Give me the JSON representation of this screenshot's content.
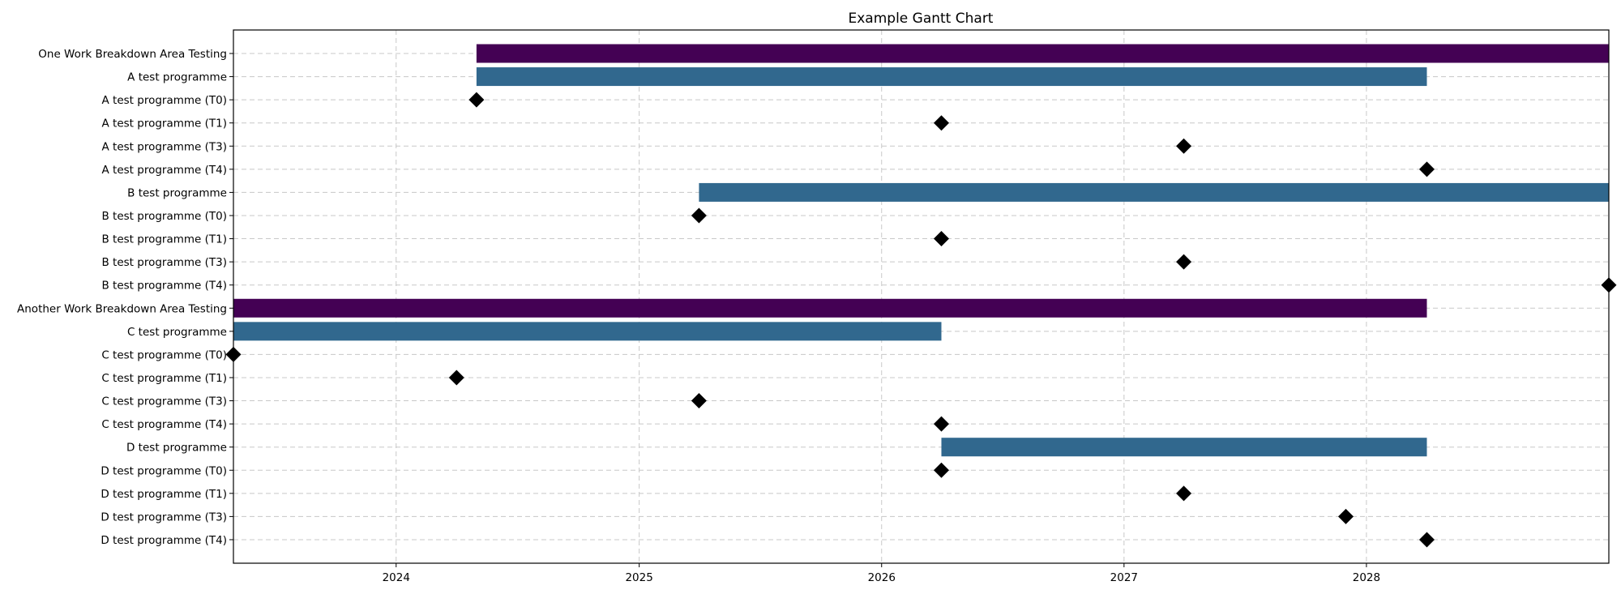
{
  "chart_data": {
    "type": "gantt",
    "title": "Example Gantt Chart",
    "xlabel": "",
    "ylabel": "",
    "x_ticks": [
      "2024",
      "2025",
      "2026",
      "2027",
      "2028"
    ],
    "xlim": [
      "2023-05-01",
      "2028-12-31"
    ],
    "grid": true,
    "colors": {
      "area": "#440154",
      "programme": "#31688e",
      "milestone": "#000000"
    },
    "rows": [
      {
        "label": "One Work Breakdown Area Testing",
        "kind": "area",
        "start": "2024-05-01",
        "end": "2028-12-31"
      },
      {
        "label": "A test programme",
        "kind": "programme",
        "start": "2024-05-01",
        "end": "2028-04-01"
      },
      {
        "label": "A test programme (T0)",
        "kind": "milestone",
        "date": "2024-05-01"
      },
      {
        "label": "A test programme (T1)",
        "kind": "milestone",
        "date": "2026-04-01"
      },
      {
        "label": "A test programme (T3)",
        "kind": "milestone",
        "date": "2027-04-01"
      },
      {
        "label": "A test programme (T4)",
        "kind": "milestone",
        "date": "2028-04-01"
      },
      {
        "label": "B test programme",
        "kind": "programme",
        "start": "2025-04-01",
        "end": "2028-12-31"
      },
      {
        "label": "B test programme (T0)",
        "kind": "milestone",
        "date": "2025-04-01"
      },
      {
        "label": "B test programme (T1)",
        "kind": "milestone",
        "date": "2026-04-01"
      },
      {
        "label": "B test programme (T3)",
        "kind": "milestone",
        "date": "2027-04-01"
      },
      {
        "label": "B test programme (T4)",
        "kind": "milestone",
        "date": "2028-12-31"
      },
      {
        "label": "Another Work Breakdown Area Testing",
        "kind": "area",
        "start": "2023-05-01",
        "end": "2028-04-01"
      },
      {
        "label": "C test programme",
        "kind": "programme",
        "start": "2023-05-01",
        "end": "2026-04-01"
      },
      {
        "label": "C test programme (T0)",
        "kind": "milestone",
        "date": "2023-05-01"
      },
      {
        "label": "C test programme (T1)",
        "kind": "milestone",
        "date": "2024-04-01"
      },
      {
        "label": "C test programme (T3)",
        "kind": "milestone",
        "date": "2025-04-01"
      },
      {
        "label": "C test programme (T4)",
        "kind": "milestone",
        "date": "2026-04-01"
      },
      {
        "label": "D test programme",
        "kind": "programme",
        "start": "2026-04-01",
        "end": "2028-04-01"
      },
      {
        "label": "D test programme (T0)",
        "kind": "milestone",
        "date": "2026-04-01"
      },
      {
        "label": "D test programme (T1)",
        "kind": "milestone",
        "date": "2027-04-01"
      },
      {
        "label": "D test programme (T3)",
        "kind": "milestone",
        "date": "2027-12-01"
      },
      {
        "label": "D test programme (T4)",
        "kind": "milestone",
        "date": "2028-04-01"
      }
    ]
  }
}
